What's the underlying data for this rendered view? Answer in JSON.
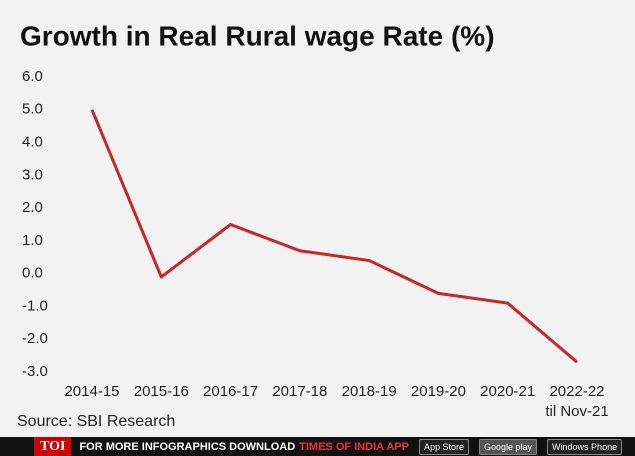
{
  "chart_data": {
    "type": "line",
    "title": "Growth in Real Rural wage Rate (%)",
    "categories": [
      "2014-15",
      "2015-16",
      "2016-17",
      "2017-18",
      "2018-19",
      "2019-20",
      "2020-21",
      "2022-22\ntil Nov-21"
    ],
    "values": [
      5.0,
      -0.1,
      1.5,
      0.7,
      0.4,
      -0.6,
      -0.9,
      -2.7
    ],
    "color": "#c62828",
    "ylim": [
      -3,
      6
    ],
    "yticks": [
      {
        "value": -3,
        "label": "-3.0"
      },
      {
        "value": -2,
        "label": "-2.0"
      },
      {
        "value": -1,
        "label": "-1.0"
      },
      {
        "value": 0,
        "label": "0.0"
      },
      {
        "value": 1,
        "label": "1.0"
      },
      {
        "value": 2,
        "label": "2.0"
      },
      {
        "value": 3,
        "label": "3.0"
      },
      {
        "value": 4,
        "label": "4.0"
      },
      {
        "value": 5,
        "label": "5.0"
      },
      {
        "value": 6,
        "label": "6.0"
      }
    ],
    "grid": false,
    "source": "Source: SBI Research"
  },
  "footer": {
    "brand": "TOI",
    "text": "FOR MORE  INFOGRAPHICS DOWNLOAD",
    "app": "TIMES OF INDIA APP",
    "badges": [
      "App Store",
      "Google play",
      "Windows Phone"
    ]
  }
}
